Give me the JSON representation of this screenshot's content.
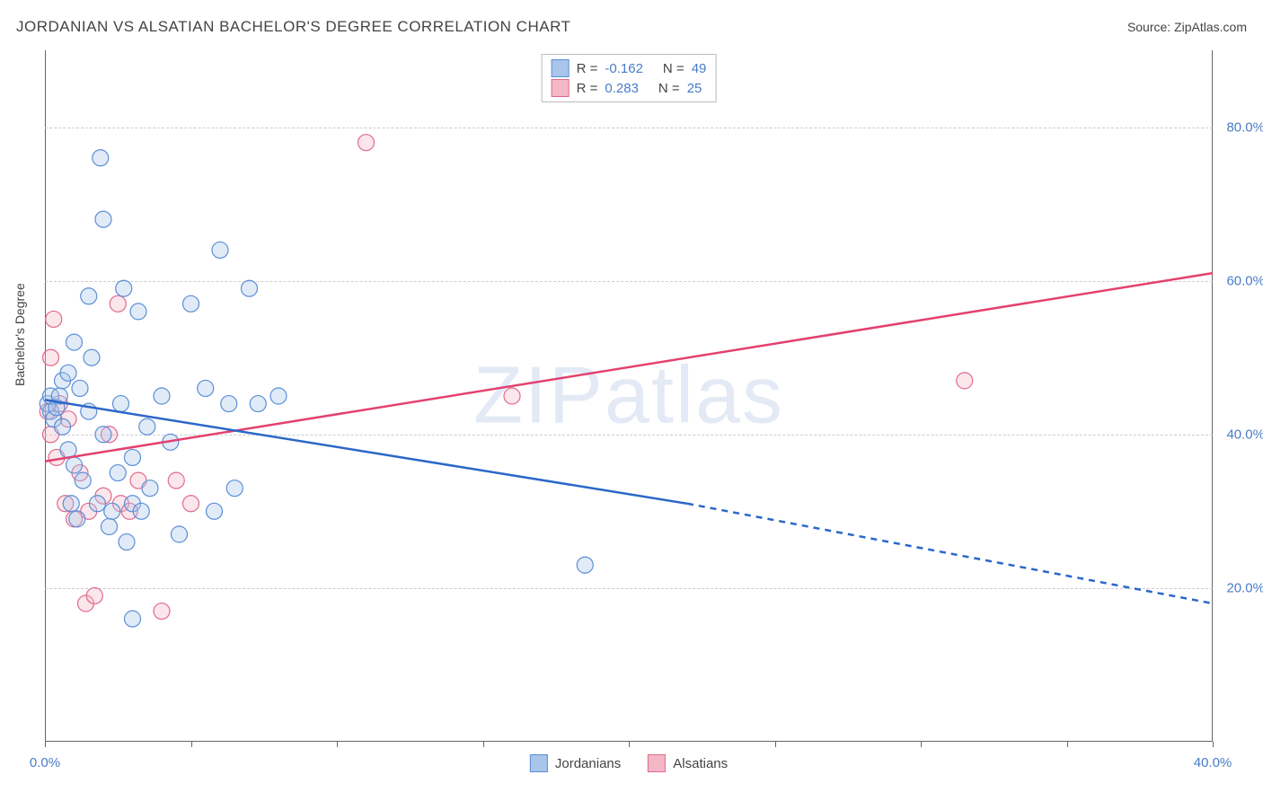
{
  "header": {
    "title": "JORDANIAN VS ALSATIAN BACHELOR'S DEGREE CORRELATION CHART",
    "source": "Source: ZipAtlas.com"
  },
  "chart": {
    "type": "scatter",
    "watermark": "ZIPatlas",
    "ylabel": "Bachelor's Degree",
    "background_color": "#ffffff",
    "grid_color": "#cccccc",
    "axis_color": "#666666",
    "xlim": [
      0,
      40
    ],
    "ylim": [
      0,
      90
    ],
    "x_ticks": [
      0,
      5,
      10,
      15,
      20,
      25,
      30,
      35,
      40
    ],
    "x_tick_labels": {
      "0": "0.0%",
      "40": "40.0%"
    },
    "y_grid": [
      20,
      40,
      60,
      80
    ],
    "y_tick_labels": {
      "20": "20.0%",
      "40": "40.0%",
      "60": "60.0%",
      "80": "80.0%"
    },
    "marker_radius": 9,
    "marker_fill_opacity": 0.35,
    "marker_stroke_width": 1.2,
    "line_width": 2.5,
    "series": {
      "jordanian": {
        "label": "Jordanians",
        "color_stroke": "#5b8fd6",
        "color_fill": "#a9c5ea",
        "line_color": "#2b67c9",
        "R": "-0.162",
        "N": "49",
        "trend": {
          "x1": 0,
          "y1": 44.5,
          "x2_solid": 22,
          "y2_solid": 31,
          "x2": 40,
          "y2": 18
        },
        "points": [
          [
            0.1,
            44
          ],
          [
            0.2,
            43
          ],
          [
            0.2,
            45
          ],
          [
            0.3,
            42
          ],
          [
            0.4,
            43.5
          ],
          [
            0.5,
            45
          ],
          [
            0.6,
            41
          ],
          [
            0.6,
            47
          ],
          [
            0.8,
            48
          ],
          [
            0.8,
            38
          ],
          [
            0.9,
            31
          ],
          [
            1.0,
            52
          ],
          [
            1.0,
            36
          ],
          [
            1.1,
            29
          ],
          [
            1.2,
            46
          ],
          [
            1.3,
            34
          ],
          [
            1.5,
            58
          ],
          [
            1.5,
            43
          ],
          [
            1.6,
            50
          ],
          [
            1.8,
            31
          ],
          [
            1.9,
            76
          ],
          [
            2.0,
            68
          ],
          [
            2.0,
            40
          ],
          [
            2.2,
            28
          ],
          [
            2.3,
            30
          ],
          [
            2.5,
            35
          ],
          [
            2.6,
            44
          ],
          [
            2.7,
            59
          ],
          [
            2.8,
            26
          ],
          [
            3.0,
            31
          ],
          [
            3.0,
            37
          ],
          [
            3.0,
            16
          ],
          [
            3.2,
            56
          ],
          [
            3.3,
            30
          ],
          [
            3.5,
            41
          ],
          [
            3.6,
            33
          ],
          [
            4.0,
            45
          ],
          [
            4.3,
            39
          ],
          [
            4.6,
            27
          ],
          [
            5.0,
            57
          ],
          [
            5.5,
            46
          ],
          [
            5.8,
            30
          ],
          [
            6.0,
            64
          ],
          [
            6.3,
            44
          ],
          [
            6.5,
            33
          ],
          [
            7.0,
            59
          ],
          [
            7.3,
            44
          ],
          [
            8.0,
            45
          ],
          [
            18.5,
            23
          ]
        ]
      },
      "alsatian": {
        "label": "Alsatians",
        "color_stroke": "#e06a8b",
        "color_fill": "#f3b7c8",
        "line_color": "#e3416f",
        "R": "0.283",
        "N": "25",
        "trend": {
          "x1": 0,
          "y1": 36.5,
          "x2": 40,
          "y2": 61
        },
        "points": [
          [
            0.1,
            43
          ],
          [
            0.2,
            40
          ],
          [
            0.2,
            50
          ],
          [
            0.3,
            55
          ],
          [
            0.4,
            37
          ],
          [
            0.5,
            44
          ],
          [
            0.7,
            31
          ],
          [
            0.8,
            42
          ],
          [
            1.0,
            29
          ],
          [
            1.2,
            35
          ],
          [
            1.4,
            18
          ],
          [
            1.5,
            30
          ],
          [
            1.7,
            19
          ],
          [
            2.0,
            32
          ],
          [
            2.2,
            40
          ],
          [
            2.5,
            57
          ],
          [
            2.6,
            31
          ],
          [
            2.9,
            30
          ],
          [
            3.2,
            34
          ],
          [
            4.0,
            17
          ],
          [
            4.5,
            34
          ],
          [
            5.0,
            31
          ],
          [
            11.0,
            78
          ],
          [
            16.0,
            45
          ],
          [
            31.5,
            47
          ]
        ]
      }
    }
  },
  "stat_legend": {
    "row1": {
      "r_label": "R =",
      "n_label": "N ="
    },
    "row2": {
      "r_label": "R =",
      "n_label": "N ="
    }
  }
}
